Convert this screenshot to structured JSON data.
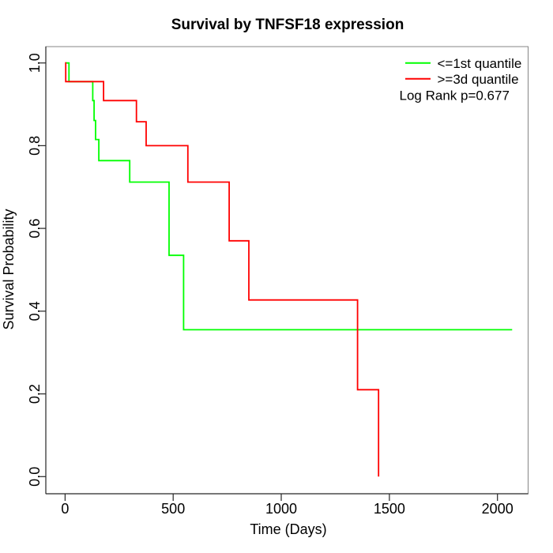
{
  "window": {
    "background_color": "#ffffff"
  },
  "chart_data": {
    "type": "line",
    "subtype": "kaplan-meier-step",
    "title": "Survival by TNFSF18 expression",
    "xlabel": "Time (Days)",
    "ylabel": "Survival Probability",
    "xlim": [
      0,
      2070
    ],
    "ylim": [
      0.0,
      1.0
    ],
    "grid": false,
    "xticks": [
      0,
      500,
      1000,
      1500,
      2000
    ],
    "yticks": [
      "0.0",
      "0.2",
      "0.4",
      "0.6",
      "0.8",
      "1.0"
    ],
    "legend": {
      "position": "topright",
      "entries": [
        {
          "label": "<=1st quantile",
          "color": "#00ff00"
        },
        {
          "label": ">=3d quantile",
          "color": "#ff0000"
        }
      ]
    },
    "annotation": "Log Rank p=0.677",
    "series": [
      {
        "name": "<=1st quantile",
        "color": "#00ff00",
        "steps": [
          [
            0,
            1.0
          ],
          [
            18,
            0.955
          ],
          [
            128,
            0.909
          ],
          [
            134,
            0.861
          ],
          [
            141,
            0.815
          ],
          [
            156,
            0.764
          ],
          [
            299,
            0.712
          ],
          [
            481,
            0.535
          ],
          [
            548,
            0.355
          ],
          [
            2068,
            0.355
          ]
        ]
      },
      {
        "name": ">=3d quantile",
        "color": "#ff0000",
        "steps": [
          [
            0,
            1.0
          ],
          [
            3,
            0.955
          ],
          [
            178,
            0.909
          ],
          [
            330,
            0.858
          ],
          [
            375,
            0.8
          ],
          [
            568,
            0.712
          ],
          [
            759,
            0.57
          ],
          [
            850,
            0.427
          ],
          [
            1353,
            0.21
          ],
          [
            1450,
            0.0
          ]
        ]
      }
    ]
  }
}
